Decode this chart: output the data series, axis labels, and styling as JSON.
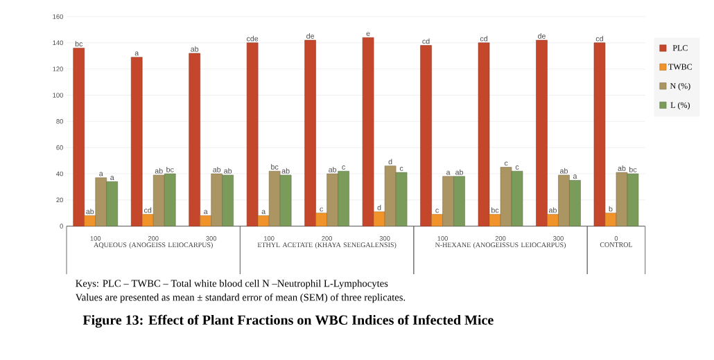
{
  "chart_data": {
    "type": "bar",
    "title": "Figure 13: Effect of Plant Fractions on WBC Indices of Infected Mice",
    "categories": [
      "100",
      "200",
      "300",
      "100",
      "200",
      "300",
      "100",
      "200",
      "300",
      "0"
    ],
    "series": [
      {
        "name": "PLC",
        "color": "#c4472b",
        "values": [
          136,
          129,
          132,
          140,
          142,
          144,
          138,
          140,
          142,
          140
        ],
        "value_labels": [
          "bc",
          "a",
          "ab",
          "cde",
          "de",
          "e",
          "cd",
          "cd",
          "de",
          "cd"
        ]
      },
      {
        "name": "TWBC",
        "color": "#f0932a",
        "values": [
          8,
          9,
          8,
          8,
          10,
          11,
          9,
          9,
          9,
          10
        ],
        "value_labels": [
          "ab",
          "cd",
          "a",
          "a",
          "c",
          "d",
          "c",
          "bc",
          "ab",
          "b"
        ]
      },
      {
        "name": "N (%)",
        "color": "#ab9563",
        "values": [
          37,
          39,
          40,
          42,
          40,
          46,
          38,
          45,
          39,
          41
        ],
        "value_labels": [
          "a",
          "ab",
          "ab",
          "bc",
          "ab",
          "d",
          "a",
          "c",
          "ab",
          "ab"
        ]
      },
      {
        "name": "L (%)",
        "color": "#7b9b5b",
        "values": [
          34,
          40,
          39,
          39,
          42,
          41,
          38,
          42,
          35,
          40
        ],
        "value_labels": [
          "a",
          "bc",
          "ab",
          "ab",
          "c",
          "c",
          "ab",
          "c",
          "a",
          "bc"
        ]
      }
    ],
    "ylim": [
      0,
      160
    ],
    "yticks": [
      0,
      20,
      40,
      60,
      80,
      100,
      120,
      140,
      160
    ],
    "grid": "y",
    "legend": "right",
    "annotations": [
      "AQUEOUS (ANOGEISS LEIOCARPUS)",
      "ETHYL ACETATE (KHAYA SENEGALENSIS)",
      "N-HEXANE (ANOGEISSUS LEIOCARPUS)",
      "CONTROL",
      "Keys: PLC – TWBC – Total white blood cell N –Neutrophil  L-Lymphocytes",
      "Values are presented as mean ± standard error of mean (SEM) of three replicates."
    ]
  }
}
